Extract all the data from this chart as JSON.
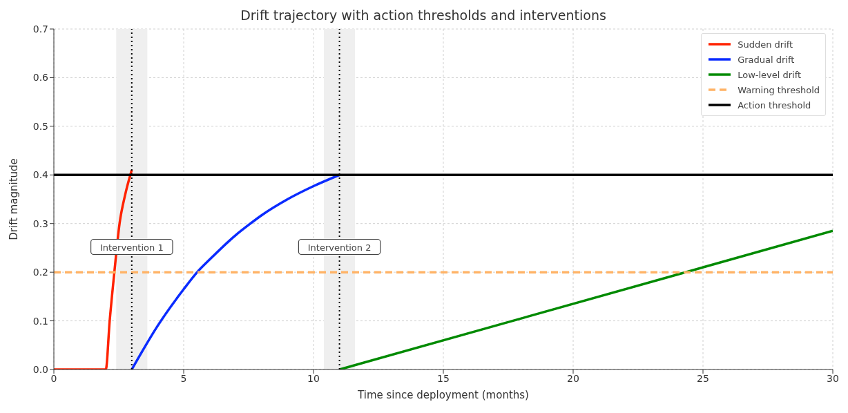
{
  "chart_data": {
    "type": "line",
    "title": "Drift trajectory with action thresholds and interventions",
    "xlabel": "Time since deployment (months)",
    "ylabel": "Drift magnitude",
    "xlim": [
      0,
      30
    ],
    "xticks": [
      0,
      5,
      10,
      15,
      20,
      25,
      30
    ],
    "ylim": [
      0,
      0.7
    ],
    "yticks": [
      {
        "value": 0,
        "label": "0.0"
      },
      0.1,
      0.2,
      0.3,
      0.4,
      0.5,
      0.6,
      0.7
    ],
    "grid": true,
    "legend": "top right",
    "marker": "none",
    "series": [
      {
        "name": "Sudden drift",
        "color": "#ff2200",
        "x": [
          0,
          2,
          2.15,
          2.33,
          2.53,
          2.75,
          3
        ],
        "values": [
          0,
          0,
          0.1,
          0.2,
          0.3,
          0.36,
          0.41
        ]
      },
      {
        "name": "Gradual drift",
        "color": "#0a2bff",
        "x": [
          3,
          4,
          5,
          5.52,
          6,
          7,
          7.57,
          8,
          9,
          10,
          11
        ],
        "values": [
          0,
          0.09,
          0.165,
          0.2,
          0.226,
          0.276,
          0.3,
          0.317,
          0.35,
          0.377,
          0.4
        ]
      },
      {
        "name": "Low-level drift",
        "color": "#008a00",
        "x": [
          11,
          30
        ],
        "values": [
          0,
          0.285
        ]
      },
      {
        "name": "Warning threshold",
        "color": "#ffb366",
        "line_style": "dashed",
        "x": [
          0,
          30
        ],
        "values": [
          0.2,
          0.2
        ]
      },
      {
        "name": "Action threshold",
        "color": "#000000",
        "x": [
          0,
          30
        ],
        "values": [
          0.4,
          0.4
        ]
      }
    ],
    "ref_lines": [
      {
        "axis": "x",
        "value": 3,
        "label": "Intervention 1",
        "color": "#000000",
        "line_style": "dotted"
      },
      {
        "axis": "x",
        "value": 11,
        "label": "Intervention 2",
        "color": "#000000",
        "line_style": "dotted"
      }
    ],
    "bands": [
      {
        "axis": "x",
        "from": 2.4,
        "to": 3.6,
        "color": "#efefef"
      },
      {
        "axis": "x",
        "from": 10.4,
        "to": 11.6,
        "color": "#efefef"
      }
    ]
  }
}
